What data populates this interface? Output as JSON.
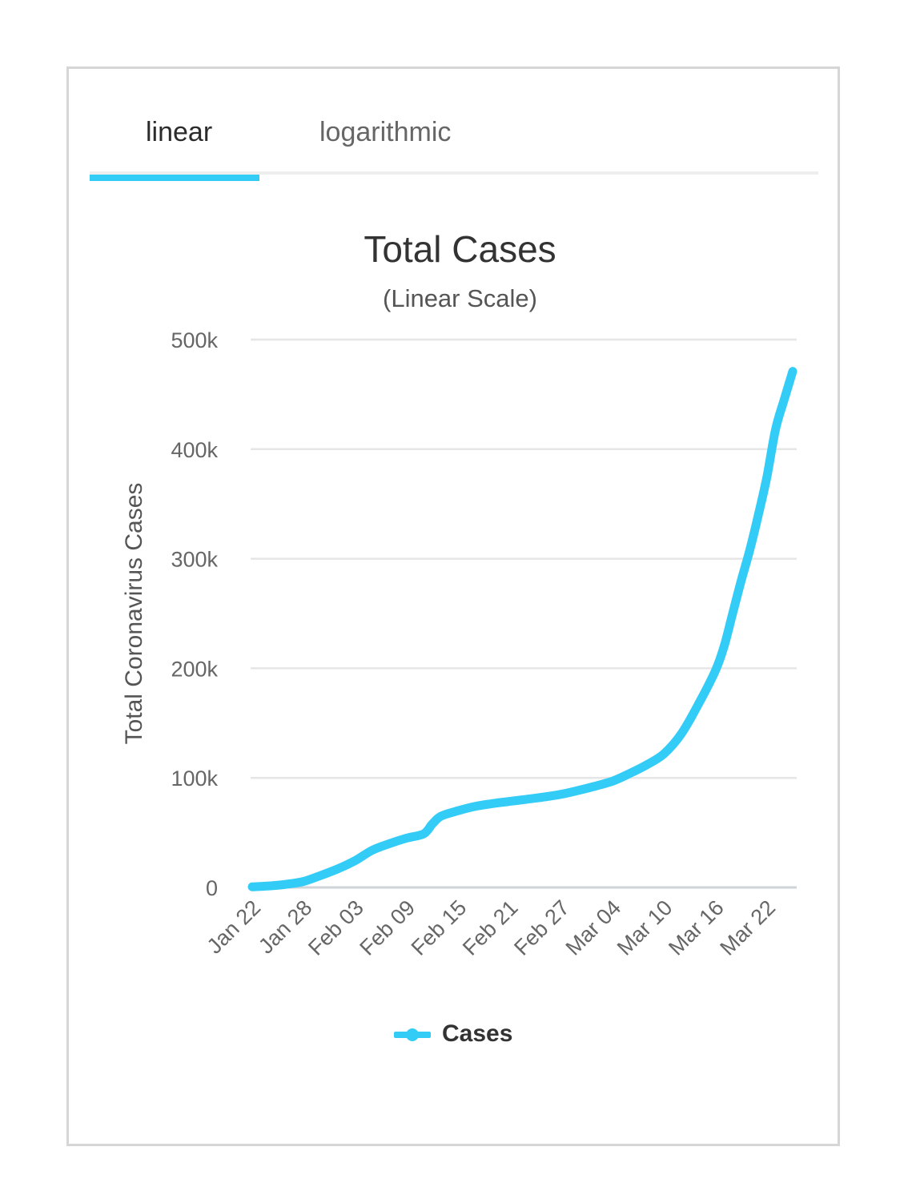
{
  "tabs": [
    {
      "label": "linear",
      "active": true
    },
    {
      "label": "logarithmic",
      "active": false
    }
  ],
  "colors": {
    "accent": "#33ccf7",
    "grid": "#e6e6e6",
    "axis": "#cfd4d8",
    "text": "#333333"
  },
  "chart_data": {
    "type": "line",
    "title": "Total Cases",
    "subtitle": "(Linear Scale)",
    "xlabel": "",
    "ylabel": "Total Coronavirus Cases",
    "ylim": [
      0,
      500000
    ],
    "yticks": [
      0,
      100000,
      200000,
      300000,
      400000,
      500000
    ],
    "ytick_labels": [
      "0",
      "100k",
      "200k",
      "300k",
      "400k",
      "500k"
    ],
    "xtick_labels": [
      "Jan 22",
      "Jan 28",
      "Feb 03",
      "Feb 09",
      "Feb 15",
      "Feb 21",
      "Feb 27",
      "Mar 04",
      "Mar 10",
      "Mar 16",
      "Mar 22"
    ],
    "xtick_days": [
      0,
      6,
      12,
      18,
      24,
      30,
      36,
      42,
      48,
      54,
      60
    ],
    "x_days_range": [
      0,
      63
    ],
    "grid": true,
    "legend_position": "bottom",
    "series": [
      {
        "name": "Cases",
        "x_days": [
          0,
          2,
          4,
          6,
          8,
          10,
          12,
          14,
          16,
          18,
          20,
          21,
          22,
          24,
          26,
          28,
          30,
          32,
          34,
          36,
          38,
          40,
          42,
          44,
          46,
          48,
          50,
          52,
          54,
          55,
          56,
          57,
          58,
          59,
          60,
          61,
          62,
          63
        ],
        "values": [
          555,
          1400,
          2900,
          5500,
          11000,
          17000,
          24500,
          34000,
          40000,
          45000,
          49000,
          58000,
          65000,
          70000,
          74000,
          76500,
          78500,
          80500,
          82500,
          85000,
          88500,
          92500,
          97000,
          104000,
          112000,
          122000,
          140000,
          167000,
          198000,
          220000,
          250000,
          280000,
          308000,
          340000,
          375000,
          418000,
          445000,
          471000
        ]
      }
    ]
  }
}
